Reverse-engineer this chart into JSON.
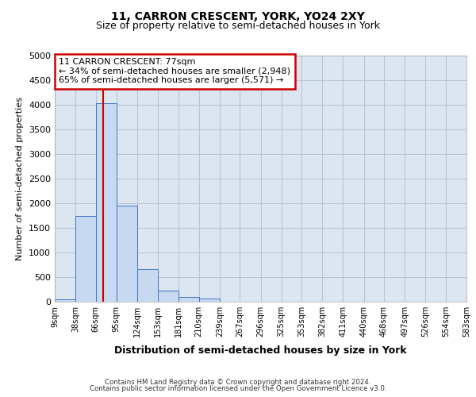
{
  "title1": "11, CARRON CRESCENT, YORK, YO24 2XY",
  "title2": "Size of property relative to semi-detached houses in York",
  "xlabel": "Distribution of semi-detached houses by size in York",
  "ylabel": "Number of semi-detached properties",
  "annotation_title": "11 CARRON CRESCENT: 77sqm",
  "annotation_line1": "← 34% of semi-detached houses are smaller (2,948)",
  "annotation_line2": "65% of semi-detached houses are larger (5,571) →",
  "footer1": "Contains HM Land Registry data © Crown copyright and database right 2024.",
  "footer2": "Contains public sector information licensed under the Open Government Licence v3.0.",
  "bar_edges": [
    9,
    38,
    66,
    95,
    124,
    153,
    181,
    210,
    239,
    267,
    296,
    325,
    353,
    382,
    411,
    440,
    468,
    497,
    526,
    554,
    583
  ],
  "bar_heights": [
    50,
    1750,
    4030,
    1950,
    660,
    230,
    90,
    70,
    0,
    0,
    0,
    0,
    0,
    0,
    0,
    0,
    0,
    0,
    0,
    0
  ],
  "bar_color": "#c6d9f0",
  "bar_edgecolor": "#4472c4",
  "plot_bg_color": "#dce6f1",
  "red_line_x": 77,
  "ylim": [
    0,
    5000
  ],
  "yticks": [
    0,
    500,
    1000,
    1500,
    2000,
    2500,
    3000,
    3500,
    4000,
    4500,
    5000
  ],
  "grid_color": "#b8c4d8",
  "annotation_box_color": "#cc0000",
  "bg_color": "#ffffff"
}
